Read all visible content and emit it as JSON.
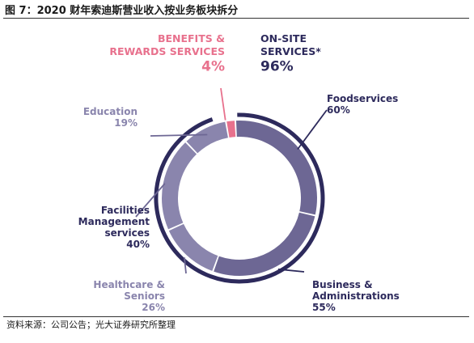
{
  "figure_title": "图 7：2020 财年索迪斯营业收入按业务板块拆分",
  "source_note": "资料来源：公司公告；光大证券研究所整理",
  "chart_data": {
    "type": "pie",
    "style": "nested donut",
    "title": "",
    "outer_ring": [
      {
        "name": "ON-SITE SERVICES*",
        "name_lines": [
          "ON-SITE",
          "SERVICES*"
        ],
        "value": 96,
        "label": "96%",
        "color": "#2d2a5c"
      },
      {
        "name": "BENEFITS & REWARDS SERVICES",
        "name_lines": [
          "BENEFITS &",
          "REWARDS SERVICES"
        ],
        "value": 4,
        "label": "4%",
        "color": "#e8718d"
      }
    ],
    "inner_ring": [
      {
        "name": "Foodservices",
        "name_lines": [
          "Foodservices"
        ],
        "value": 60,
        "label": "60%",
        "color": "#6d6794"
      },
      {
        "name": "Business & Administrations",
        "name_lines": [
          "Business &",
          "Administrations"
        ],
        "value": 55,
        "label": "55%",
        "color": "#6d6794"
      },
      {
        "name": "Healthcare & Seniors",
        "name_lines": [
          "Healthcare &",
          "Seniors"
        ],
        "value": 26,
        "label": "26%",
        "color": "#8a85ad"
      },
      {
        "name": "Facilities Management services",
        "name_lines": [
          "Facilities",
          "Management",
          "services"
        ],
        "value": 40,
        "label": "40%",
        "color": "#8a85ad"
      },
      {
        "name": "Education",
        "name_lines": [
          "Education"
        ],
        "value": 19,
        "label": "19%",
        "color": "#8a85ad"
      },
      {
        "name": "BENEFITS & REWARDS SERVICES",
        "name_lines": [],
        "value": 4,
        "label": "",
        "color": "#e8718d"
      }
    ],
    "colors": {
      "outer_ring": "#2d2a5c",
      "inner_dark": "#6d6794",
      "inner_light": "#8a85ad",
      "benefits": "#e8718d",
      "label_text": "#2d2a5c",
      "label_text_light": "#8a85ad"
    }
  }
}
